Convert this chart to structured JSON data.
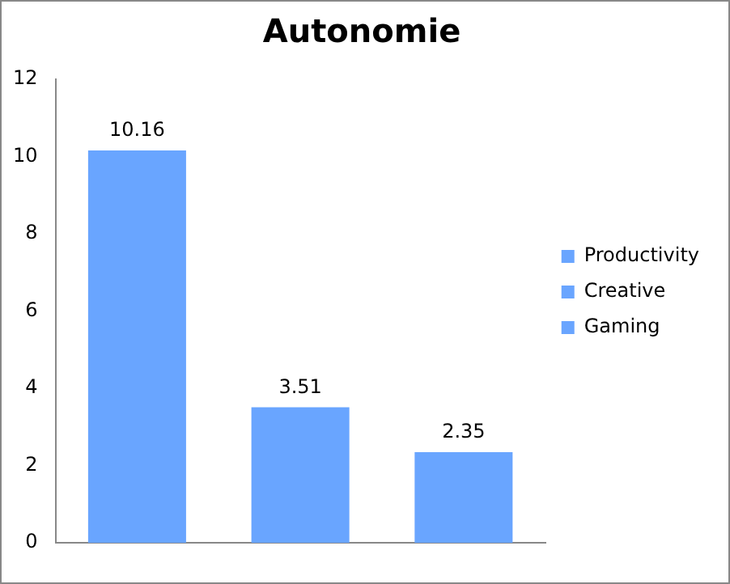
{
  "chart_data": {
    "type": "bar",
    "title": "Autonomie",
    "categories": [
      null,
      null,
      null
    ],
    "series": [
      {
        "name": "Productivity",
        "color": "#69a5ff",
        "values": [
          10.16,
          null,
          null
        ]
      },
      {
        "name": "Creative",
        "color": "#69a5ff",
        "values": [
          null,
          3.51,
          null
        ]
      },
      {
        "name": "Gaming",
        "color": "#69a5ff",
        "values": [
          null,
          null,
          2.35
        ]
      }
    ],
    "ylim": [
      0,
      12
    ],
    "yticks": [
      0,
      2,
      4,
      6,
      8,
      10,
      12
    ],
    "grid": false,
    "legend": "right",
    "data_labels": true
  }
}
